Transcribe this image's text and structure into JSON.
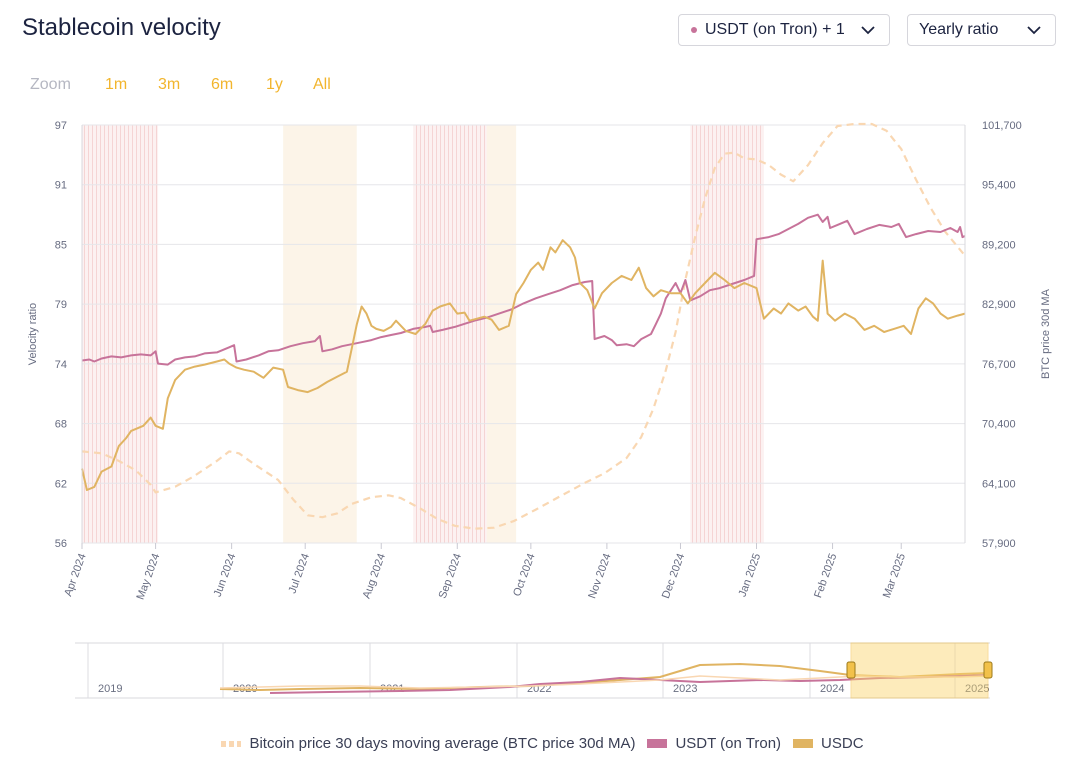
{
  "header": {
    "title": "Stablecoin velocity",
    "asset_select": "USDT (on Tron) + 1",
    "ratio_select": "Yearly ratio"
  },
  "zoom": {
    "label": "Zoom",
    "options": [
      "1m",
      "3m",
      "6m",
      "1y",
      "All"
    ]
  },
  "colors": {
    "usdt": "#c7739a",
    "usdc": "#e0b462",
    "btc": "#f9d7b2",
    "accent": "#f2b52d",
    "shade_red": "#f7dede",
    "shade_orange": "#faecd9"
  },
  "chart_data": {
    "type": "line",
    "title": "Stablecoin velocity",
    "ylabel": "Velocity ratio",
    "y2label": "BTC price 30d MA",
    "ylim": [
      56,
      97
    ],
    "y2lim": [
      57900,
      101700
    ],
    "yticks": [
      "97",
      "91",
      "85",
      "79",
      "74",
      "68",
      "62",
      "56"
    ],
    "y2ticks": [
      "101,700",
      "95,400",
      "89,200",
      "82,900",
      "76,700",
      "70,400",
      "64,100",
      "57,900"
    ],
    "x_range_days": [
      0,
      360
    ],
    "x_labels": [
      {
        "label": "Apr 2024",
        "day": 0
      },
      {
        "label": "May 2024",
        "day": 30
      },
      {
        "label": "Jun 2024",
        "day": 61
      },
      {
        "label": "Jul 2024",
        "day": 91
      },
      {
        "label": "Aug 2024",
        "day": 122
      },
      {
        "label": "Sep 2024",
        "day": 153
      },
      {
        "label": "Oct 2024",
        "day": 183
      },
      {
        "label": "Nov 2024",
        "day": 214
      },
      {
        "label": "Dec 2024",
        "day": 244
      },
      {
        "label": "Jan 2025",
        "day": 275
      },
      {
        "label": "Feb 2025",
        "day": 306
      },
      {
        "label": "Mar 2025",
        "day": 334
      }
    ],
    "shaded_periods": [
      {
        "start": 0,
        "end": 31,
        "type": "red"
      },
      {
        "start": 82,
        "end": 112,
        "type": "orange"
      },
      {
        "start": 135,
        "end": 165,
        "type": "red"
      },
      {
        "start": 165,
        "end": 177,
        "type": "orange"
      },
      {
        "start": 248,
        "end": 278,
        "type": "red"
      }
    ],
    "series": [
      {
        "name": "Bitcoin price 30 days moving average (BTC price 30d MA)",
        "axis": "right",
        "style": "dashed",
        "points": [
          [
            0,
            67500
          ],
          [
            8,
            67300
          ],
          [
            15,
            66500
          ],
          [
            22,
            65500
          ],
          [
            28,
            64000
          ],
          [
            30,
            63200
          ],
          [
            38,
            63800
          ],
          [
            45,
            64800
          ],
          [
            55,
            66500
          ],
          [
            60,
            67500
          ],
          [
            64,
            67300
          ],
          [
            70,
            66200
          ],
          [
            80,
            64500
          ],
          [
            86,
            62500
          ],
          [
            92,
            60800
          ],
          [
            98,
            60600
          ],
          [
            104,
            61000
          ],
          [
            110,
            62000
          ],
          [
            118,
            62700
          ],
          [
            125,
            62900
          ],
          [
            130,
            62600
          ],
          [
            138,
            61500
          ],
          [
            145,
            60400
          ],
          [
            152,
            59700
          ],
          [
            160,
            59400
          ],
          [
            168,
            59500
          ],
          [
            176,
            60200
          ],
          [
            185,
            61400
          ],
          [
            195,
            62800
          ],
          [
            205,
            64200
          ],
          [
            213,
            65200
          ],
          [
            222,
            66800
          ],
          [
            228,
            69000
          ],
          [
            233,
            72000
          ],
          [
            238,
            76000
          ],
          [
            242,
            80000
          ],
          [
            246,
            85500
          ],
          [
            250,
            90000
          ],
          [
            254,
            94000
          ],
          [
            258,
            97200
          ],
          [
            262,
            98700
          ],
          [
            266,
            98800
          ],
          [
            270,
            98200
          ],
          [
            275,
            98100
          ],
          [
            280,
            97500
          ],
          [
            285,
            96500
          ],
          [
            290,
            95800
          ],
          [
            296,
            97500
          ],
          [
            302,
            99800
          ],
          [
            308,
            101600
          ],
          [
            315,
            101800
          ],
          [
            322,
            101800
          ],
          [
            328,
            101100
          ],
          [
            334,
            99200
          ],
          [
            340,
            96000
          ],
          [
            346,
            93000
          ],
          [
            352,
            90500
          ],
          [
            360,
            88000
          ]
        ]
      },
      {
        "name": "USDT (on Tron)",
        "axis": "left",
        "style": "solid",
        "points": [
          [
            0,
            73.9
          ],
          [
            3,
            74.0
          ],
          [
            5,
            73.8
          ],
          [
            8,
            74.1
          ],
          [
            12,
            74.3
          ],
          [
            16,
            74.2
          ],
          [
            20,
            74.4
          ],
          [
            24,
            74.5
          ],
          [
            28,
            74.4
          ],
          [
            30,
            74.8
          ],
          [
            31,
            73.6
          ],
          [
            35,
            73.5
          ],
          [
            38,
            74.0
          ],
          [
            42,
            74.2
          ],
          [
            46,
            74.3
          ],
          [
            50,
            74.6
          ],
          [
            55,
            74.7
          ],
          [
            60,
            75.2
          ],
          [
            62,
            75.4
          ],
          [
            63,
            73.8
          ],
          [
            67,
            74.0
          ],
          [
            72,
            74.4
          ],
          [
            76,
            74.8
          ],
          [
            80,
            74.9
          ],
          [
            85,
            75.3
          ],
          [
            90,
            75.6
          ],
          [
            95,
            75.8
          ],
          [
            97,
            76.3
          ],
          [
            98,
            74.8
          ],
          [
            102,
            75.0
          ],
          [
            106,
            75.3
          ],
          [
            110,
            75.5
          ],
          [
            114,
            75.7
          ],
          [
            118,
            75.9
          ],
          [
            122,
            76.2
          ],
          [
            126,
            76.4
          ],
          [
            130,
            76.6
          ],
          [
            135,
            77.0
          ],
          [
            140,
            77.2
          ],
          [
            142,
            77.3
          ],
          [
            143,
            76.7
          ],
          [
            147,
            76.9
          ],
          [
            152,
            77.2
          ],
          [
            156,
            77.5
          ],
          [
            160,
            77.8
          ],
          [
            165,
            78.1
          ],
          [
            170,
            78.5
          ],
          [
            175,
            78.9
          ],
          [
            180,
            79.5
          ],
          [
            185,
            80.0
          ],
          [
            190,
            80.4
          ],
          [
            195,
            80.8
          ],
          [
            200,
            81.3
          ],
          [
            205,
            81.6
          ],
          [
            208,
            81.7
          ],
          [
            209,
            76.0
          ],
          [
            213,
            76.3
          ],
          [
            216,
            75.9
          ],
          [
            218,
            75.4
          ],
          [
            222,
            75.5
          ],
          [
            225,
            75.3
          ],
          [
            228,
            76.0
          ],
          [
            232,
            76.5
          ],
          [
            234,
            77.5
          ],
          [
            236,
            78.5
          ],
          [
            238,
            80.0
          ],
          [
            242,
            81.5
          ],
          [
            244,
            80.5
          ],
          [
            246,
            81.8
          ],
          [
            248,
            79.8
          ],
          [
            252,
            80.2
          ],
          [
            256,
            80.8
          ],
          [
            260,
            81.0
          ],
          [
            265,
            81.4
          ],
          [
            270,
            81.8
          ],
          [
            274,
            82.2
          ],
          [
            275,
            85.8
          ],
          [
            280,
            86.0
          ],
          [
            284,
            86.3
          ],
          [
            288,
            86.8
          ],
          [
            292,
            87.3
          ],
          [
            296,
            87.9
          ],
          [
            300,
            88.2
          ],
          [
            302,
            87.5
          ],
          [
            304,
            88.0
          ],
          [
            305,
            86.9
          ],
          [
            308,
            87.2
          ],
          [
            312,
            87.6
          ],
          [
            315,
            86.3
          ],
          [
            320,
            86.8
          ],
          [
            325,
            87.2
          ],
          [
            330,
            87.0
          ],
          [
            333,
            87.3
          ],
          [
            336,
            86.0
          ],
          [
            340,
            86.3
          ],
          [
            345,
            86.6
          ],
          [
            350,
            86.5
          ],
          [
            354,
            86.9
          ],
          [
            357,
            86.5
          ],
          [
            358,
            87.0
          ],
          [
            359,
            86.0
          ],
          [
            360,
            86.1
          ]
        ]
      },
      {
        "name": "USDC",
        "axis": "left",
        "style": "solid",
        "points": [
          [
            0,
            63.3
          ],
          [
            2,
            61.2
          ],
          [
            5,
            61.5
          ],
          [
            8,
            63.0
          ],
          [
            12,
            63.5
          ],
          [
            15,
            65.5
          ],
          [
            18,
            66.3
          ],
          [
            20,
            67.0
          ],
          [
            25,
            67.5
          ],
          [
            28,
            68.3
          ],
          [
            30,
            67.5
          ],
          [
            33,
            67.2
          ],
          [
            35,
            70.2
          ],
          [
            38,
            72.0
          ],
          [
            42,
            73.0
          ],
          [
            46,
            73.3
          ],
          [
            50,
            73.5
          ],
          [
            55,
            73.8
          ],
          [
            58,
            74.0
          ],
          [
            60,
            73.6
          ],
          [
            63,
            73.2
          ],
          [
            66,
            73.0
          ],
          [
            70,
            72.8
          ],
          [
            74,
            72.2
          ],
          [
            78,
            73.2
          ],
          [
            82,
            73.0
          ],
          [
            84,
            71.3
          ],
          [
            88,
            71.0
          ],
          [
            92,
            70.8
          ],
          [
            96,
            71.2
          ],
          [
            100,
            71.8
          ],
          [
            104,
            72.3
          ],
          [
            108,
            72.8
          ],
          [
            112,
            77.4
          ],
          [
            114,
            79.2
          ],
          [
            116,
            78.5
          ],
          [
            118,
            77.3
          ],
          [
            120,
            77.0
          ],
          [
            123,
            76.8
          ],
          [
            126,
            77.2
          ],
          [
            128,
            77.8
          ],
          [
            132,
            76.8
          ],
          [
            136,
            76.5
          ],
          [
            140,
            77.5
          ],
          [
            143,
            78.8
          ],
          [
            146,
            79.2
          ],
          [
            150,
            79.5
          ],
          [
            153,
            78.5
          ],
          [
            156,
            78.6
          ],
          [
            158,
            77.8
          ],
          [
            161,
            78.0
          ],
          [
            164,
            78.2
          ],
          [
            167,
            77.9
          ],
          [
            170,
            76.9
          ],
          [
            174,
            77.3
          ],
          [
            177,
            80.4
          ],
          [
            180,
            81.5
          ],
          [
            183,
            82.8
          ],
          [
            186,
            83.5
          ],
          [
            188,
            82.8
          ],
          [
            191,
            85.0
          ],
          [
            193,
            84.5
          ],
          [
            196,
            85.7
          ],
          [
            199,
            85.0
          ],
          [
            201,
            84.0
          ],
          [
            203,
            81.5
          ],
          [
            206,
            80.8
          ],
          [
            209,
            79.0
          ],
          [
            212,
            80.5
          ],
          [
            216,
            81.5
          ],
          [
            220,
            82.2
          ],
          [
            224,
            81.8
          ],
          [
            227,
            83.0
          ],
          [
            230,
            81.0
          ],
          [
            233,
            80.2
          ],
          [
            236,
            80.8
          ],
          [
            240,
            80.5
          ],
          [
            244,
            80.5
          ],
          [
            247,
            79.5
          ],
          [
            250,
            80.5
          ],
          [
            254,
            81.5
          ],
          [
            258,
            82.5
          ],
          [
            262,
            81.8
          ],
          [
            266,
            81.0
          ],
          [
            270,
            81.5
          ],
          [
            275,
            81.0
          ],
          [
            278,
            78.0
          ],
          [
            282,
            79.0
          ],
          [
            285,
            78.5
          ],
          [
            288,
            79.5
          ],
          [
            292,
            78.8
          ],
          [
            295,
            79.2
          ],
          [
            298,
            78.2
          ],
          [
            300,
            77.8
          ],
          [
            302,
            83.7
          ],
          [
            304,
            78.5
          ],
          [
            307,
            77.8
          ],
          [
            311,
            78.5
          ],
          [
            315,
            78.0
          ],
          [
            319,
            76.9
          ],
          [
            323,
            77.3
          ],
          [
            327,
            76.7
          ],
          [
            331,
            77.0
          ],
          [
            335,
            77.3
          ],
          [
            338,
            76.5
          ],
          [
            341,
            79.0
          ],
          [
            344,
            80.0
          ],
          [
            347,
            79.5
          ],
          [
            350,
            78.5
          ],
          [
            353,
            78.0
          ],
          [
            357,
            78.3
          ],
          [
            360,
            78.5
          ]
        ]
      }
    ],
    "navigator": {
      "labels": [
        "2019",
        "2020",
        "2021",
        "2022",
        "2023",
        "2024",
        "2025"
      ]
    },
    "legend": [
      "Bitcoin price 30 days moving average (BTC price 30d MA)",
      "USDT (on Tron)",
      "USDC"
    ]
  }
}
